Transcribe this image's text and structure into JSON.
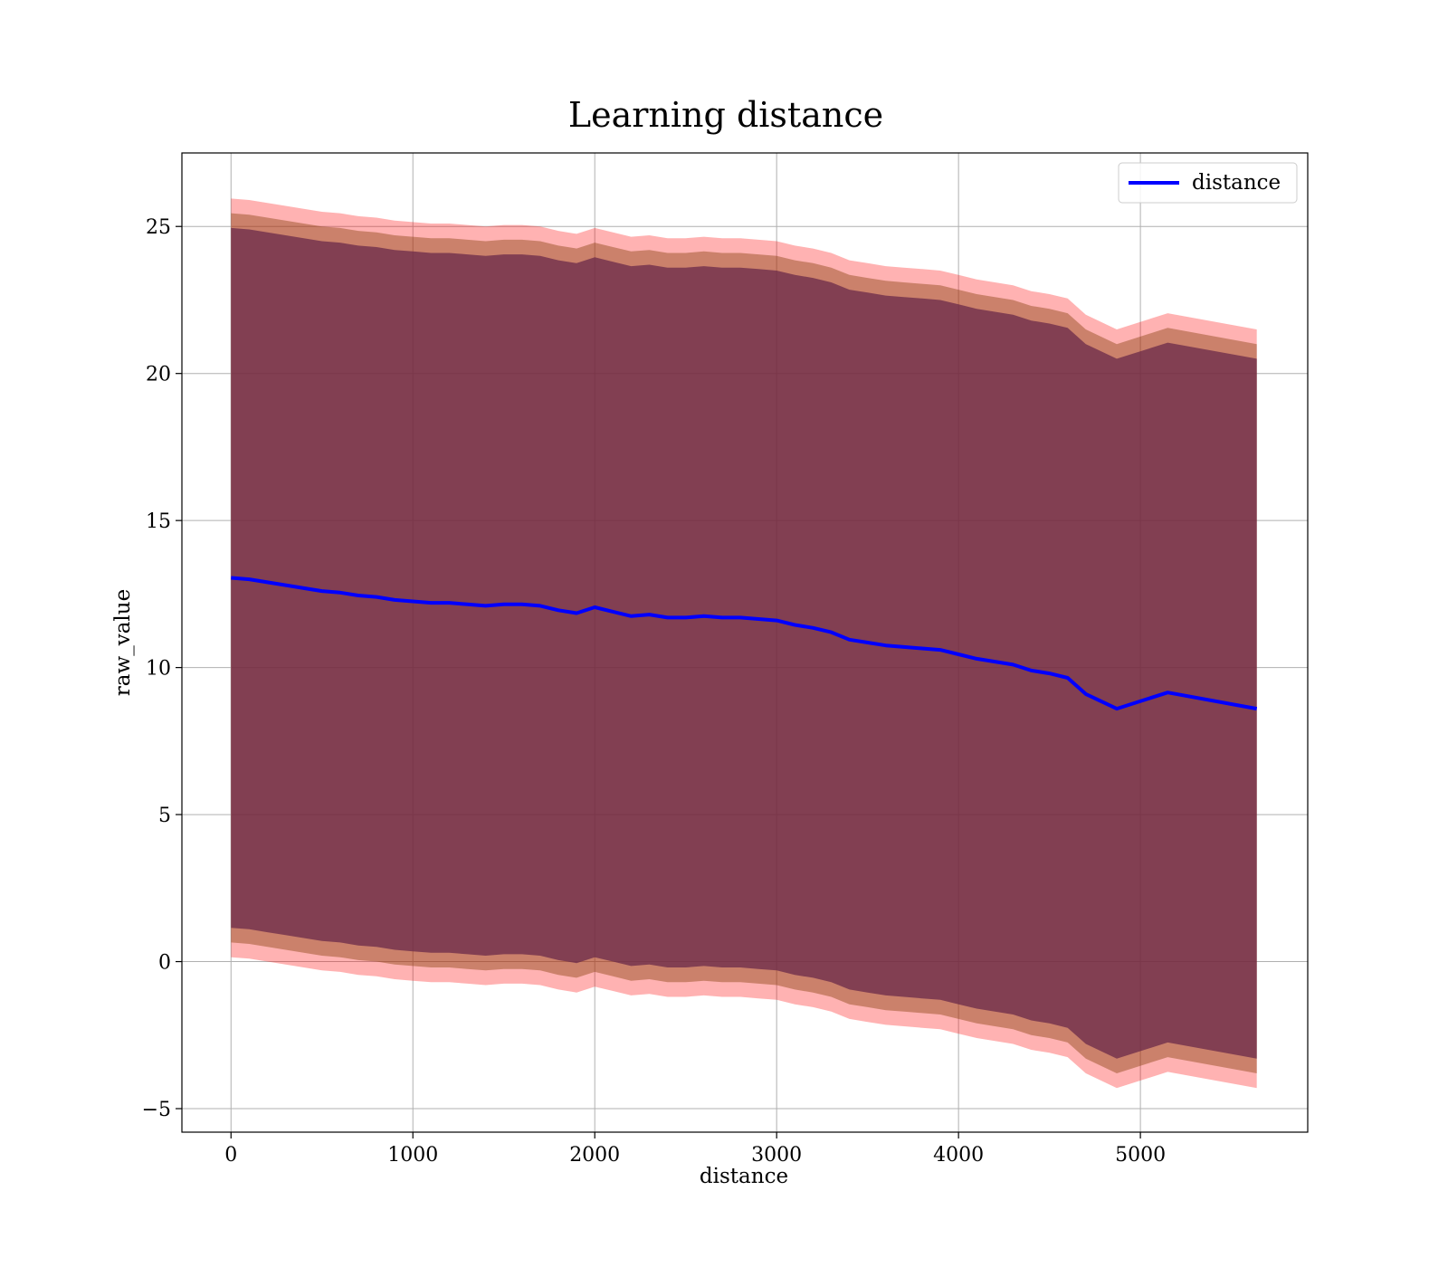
{
  "chart_data": {
    "type": "line",
    "title": "Learning distance",
    "xlabel": "distance",
    "ylabel": "raw_value",
    "xlim": [
      -270,
      5920
    ],
    "ylim": [
      -5.8,
      27.5
    ],
    "xticks": [
      0,
      1000,
      2000,
      3000,
      4000,
      5000
    ],
    "yticks": [
      -5,
      0,
      5,
      10,
      15,
      20,
      25
    ],
    "ytick_labels": [
      "−5",
      "0",
      "5",
      "10",
      "15",
      "20",
      "25"
    ],
    "grid": true,
    "legend": {
      "position": "top-right",
      "entries": [
        "distance"
      ]
    },
    "colors": {
      "line": "#0000ff",
      "band_outer": "#ff0000",
      "band_mid": "#8b4513",
      "band_inner": "#6a2a4a",
      "grid": "#b0b0b0"
    },
    "series": [
      {
        "name": "distance",
        "x": [
          0,
          100,
          200,
          300,
          400,
          500,
          600,
          700,
          800,
          900,
          1000,
          1100,
          1200,
          1300,
          1400,
          1500,
          1600,
          1700,
          1800,
          1900,
          2000,
          2100,
          2200,
          2300,
          2400,
          2500,
          2600,
          2700,
          2800,
          2900,
          3000,
          3100,
          3200,
          3300,
          3400,
          3500,
          3600,
          3700,
          3800,
          3900,
          4000,
          4100,
          4200,
          4300,
          4400,
          4500,
          4600,
          4700,
          4870,
          5150,
          5640
        ],
        "values": [
          13.05,
          13.0,
          12.9,
          12.8,
          12.7,
          12.6,
          12.55,
          12.45,
          12.4,
          12.3,
          12.25,
          12.2,
          12.2,
          12.15,
          12.1,
          12.15,
          12.15,
          12.1,
          11.95,
          11.85,
          12.05,
          11.9,
          11.75,
          11.8,
          11.7,
          11.7,
          11.75,
          11.7,
          11.7,
          11.65,
          11.6,
          11.45,
          11.35,
          11.2,
          10.95,
          10.85,
          10.75,
          10.7,
          10.65,
          10.6,
          10.45,
          10.3,
          10.2,
          10.1,
          9.9,
          9.8,
          9.65,
          9.1,
          8.6,
          9.15,
          8.6
        ]
      }
    ],
    "bands": {
      "outer_width": 12.9,
      "mid_width": 12.4,
      "inner_width": 11.9
    }
  }
}
